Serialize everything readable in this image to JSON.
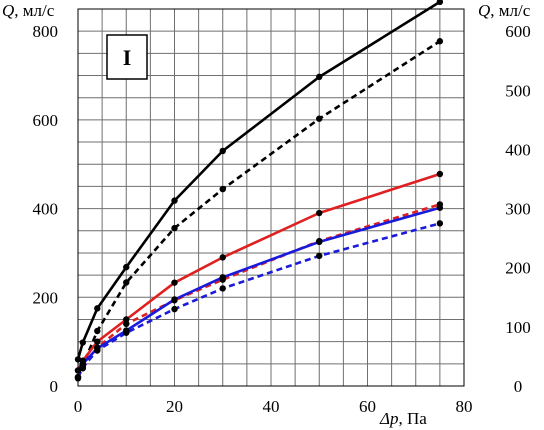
{
  "chart_data": {
    "type": "line",
    "panel_label": "I",
    "left_axis": {
      "label": "Q",
      "unit": ", мл/с",
      "ylim": [
        0,
        850
      ],
      "ticks": [
        "0",
        "200",
        "400",
        "600",
        "800"
      ]
    },
    "right_axis": {
      "label": "Q",
      "unit": ", мл/с",
      "ylim": [
        0,
        637.5
      ],
      "ticks": [
        "0",
        "100",
        "200",
        "300",
        "400",
        "500",
        "600"
      ]
    },
    "x_axis": {
      "label": "Δp",
      "unit": ", Па",
      "xlim": [
        0,
        80
      ],
      "ticks": [
        "0",
        "20",
        "40",
        "60",
        "80"
      ]
    },
    "grid": true,
    "series": [
      {
        "color": "#000000",
        "dashed": false,
        "axis": "left",
        "x": [
          0,
          1,
          4,
          10,
          20,
          30,
          50,
          75
        ],
        "y": [
          60,
          98,
          175,
          268,
          418,
          530,
          697,
          866
        ]
      },
      {
        "color": "#000000",
        "dashed": true,
        "axis": "right",
        "x": [
          0,
          1,
          4,
          10,
          20,
          30,
          50,
          75
        ],
        "y": [
          13,
          35,
          93,
          175,
          267,
          333,
          452,
          583
        ]
      },
      {
        "color": "#e02020",
        "dashed": false,
        "axis": "left",
        "x": [
          0,
          1,
          4,
          10,
          20,
          30,
          50,
          75
        ],
        "y": [
          35,
          57,
          100,
          150,
          233,
          290,
          390,
          478
        ]
      },
      {
        "color": "#e02020",
        "dashed": true,
        "axis": "right",
        "x": [
          0,
          1,
          4,
          10,
          20,
          30,
          50,
          75
        ],
        "y": [
          15,
          30,
          65,
          105,
          145,
          180,
          245,
          307
        ]
      },
      {
        "color": "#1a1adc",
        "dashed": false,
        "axis": "left",
        "x": [
          0,
          1,
          4,
          10,
          20,
          30,
          50,
          75
        ],
        "y": [
          35,
          50,
          85,
          125,
          195,
          245,
          325,
          402
        ]
      },
      {
        "color": "#1a1adc",
        "dashed": true,
        "axis": "right",
        "x": [
          0,
          1,
          4,
          10,
          20,
          30,
          50,
          75
        ],
        "y": [
          15,
          32,
          60,
          90,
          130,
          165,
          220,
          275
        ]
      }
    ]
  }
}
